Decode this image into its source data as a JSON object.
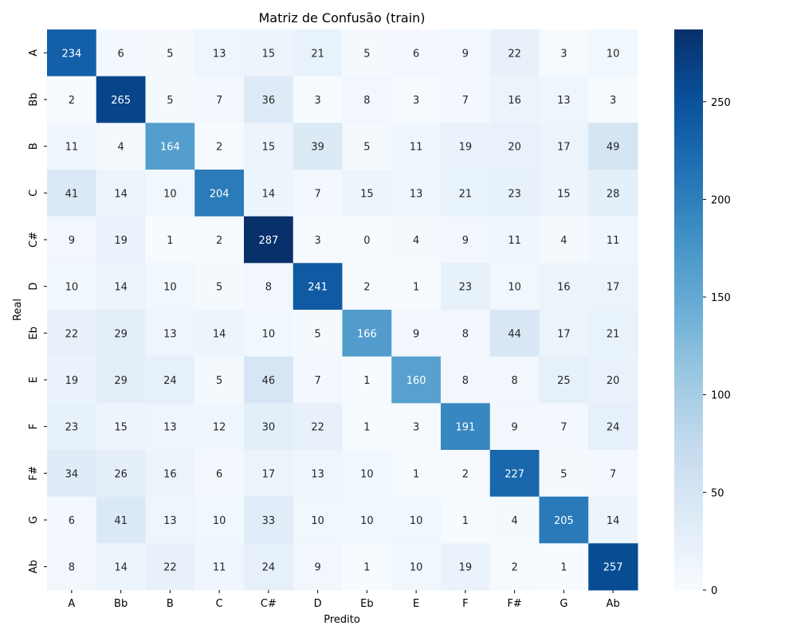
{
  "chart_data": {
    "type": "heatmap",
    "title": "Matriz de Confusão (train)",
    "xlabel": "Predito",
    "ylabel": "Real",
    "x_categories": [
      "A",
      "Bb",
      "B",
      "C",
      "C#",
      "D",
      "Eb",
      "E",
      "F",
      "F#",
      "G",
      "Ab"
    ],
    "y_categories": [
      "A",
      "Bb",
      "B",
      "C",
      "C#",
      "D",
      "Eb",
      "E",
      "F",
      "F#",
      "G",
      "Ab"
    ],
    "values": [
      [
        234,
        6,
        5,
        13,
        15,
        21,
        5,
        6,
        9,
        22,
        3,
        10
      ],
      [
        2,
        265,
        5,
        7,
        36,
        3,
        8,
        3,
        7,
        16,
        13,
        3
      ],
      [
        11,
        4,
        164,
        2,
        15,
        39,
        5,
        11,
        19,
        20,
        17,
        49
      ],
      [
        41,
        14,
        10,
        204,
        14,
        7,
        15,
        13,
        21,
        23,
        15,
        28
      ],
      [
        9,
        19,
        1,
        2,
        287,
        3,
        0,
        4,
        9,
        11,
        4,
        11
      ],
      [
        10,
        14,
        10,
        5,
        8,
        241,
        2,
        1,
        23,
        10,
        16,
        17
      ],
      [
        22,
        29,
        13,
        14,
        10,
        5,
        166,
        9,
        8,
        44,
        17,
        21
      ],
      [
        19,
        29,
        24,
        5,
        46,
        7,
        1,
        160,
        8,
        8,
        25,
        20
      ],
      [
        23,
        15,
        13,
        12,
        30,
        22,
        1,
        3,
        191,
        9,
        7,
        24
      ],
      [
        34,
        26,
        16,
        6,
        17,
        13,
        10,
        1,
        2,
        227,
        5,
        7
      ],
      [
        6,
        41,
        13,
        10,
        33,
        10,
        10,
        10,
        1,
        4,
        205,
        14
      ],
      [
        8,
        14,
        22,
        11,
        24,
        9,
        1,
        10,
        19,
        2,
        1,
        257
      ]
    ],
    "colormap": "Blues",
    "colorbar": {
      "range": [
        0,
        287
      ],
      "ticks": [
        0,
        50,
        100,
        150,
        200,
        250
      ]
    },
    "grid": false
  }
}
